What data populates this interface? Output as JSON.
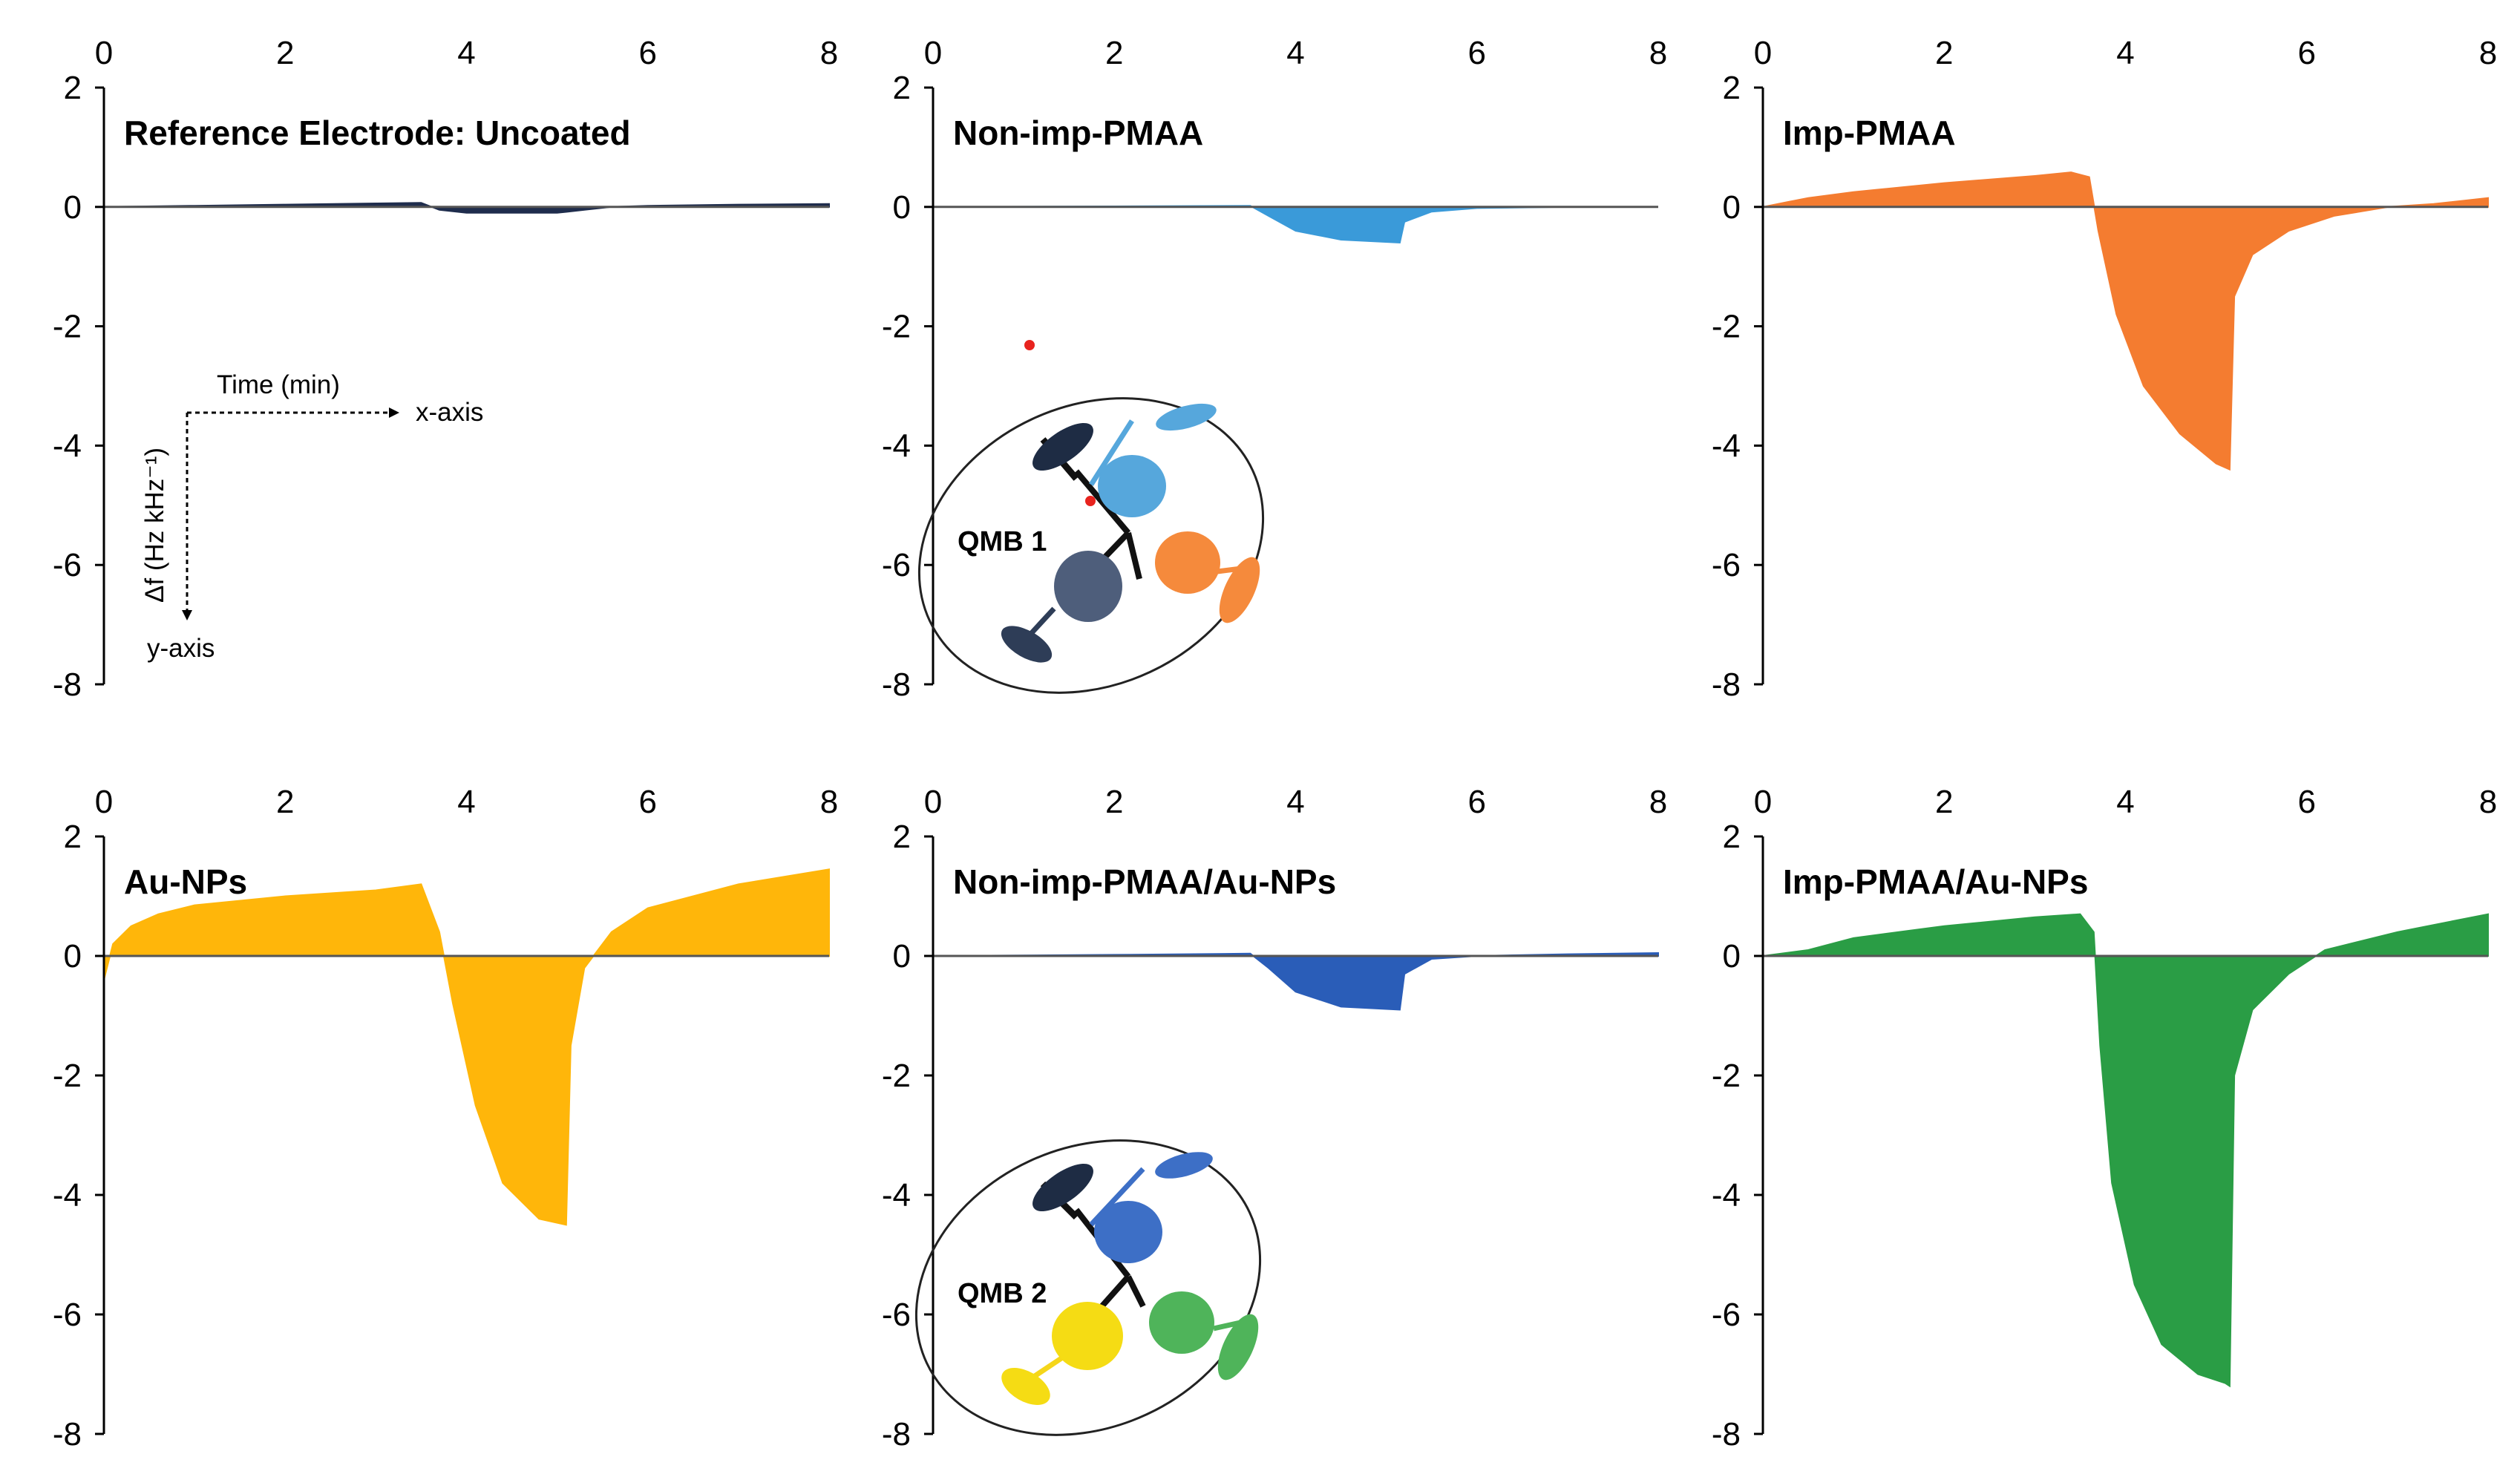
{
  "figure": {
    "x_tick_labels": [
      "0",
      "2",
      "4",
      "6",
      "8"
    ],
    "y_tick_labels": [
      "2",
      "0",
      "-2",
      "-4",
      "-6",
      "-8"
    ],
    "axis_key": {
      "x_label": "Time (min)",
      "x_axis_text": "x-axis",
      "y_label": "Δf (Hz kHz⁻¹)",
      "y_axis_text": "y-axis"
    },
    "sensor_labels": [
      "QMB 1",
      "QMB 2"
    ]
  },
  "chart_data": [
    {
      "type": "area",
      "title": "Reference Electrode: Uncoated",
      "color": "#1f2d4d",
      "xlabel": "Time (min)",
      "ylabel": "Δf (Hz kHz⁻¹)",
      "xlim": [
        0,
        8
      ],
      "ylim": [
        -8,
        2
      ],
      "x": [
        0,
        1,
        2,
        3,
        3.5,
        3.7,
        4,
        5,
        5.3,
        5.6,
        6,
        7,
        8
      ],
      "y": [
        0,
        0.02,
        0.04,
        0.06,
        0.07,
        -0.05,
        -0.1,
        -0.1,
        -0.05,
        0,
        0.02,
        0.04,
        0.05
      ]
    },
    {
      "type": "area",
      "title": "Non-imp-PMAA",
      "color": "#3a9ad9",
      "xlabel": "Time (min)",
      "ylabel": "Δf (Hz kHz⁻¹)",
      "xlim": [
        0,
        8
      ],
      "ylim": [
        -8,
        2
      ],
      "x": [
        0,
        2,
        3.5,
        3.7,
        4,
        4.5,
        5.15,
        5.2,
        5.5,
        6,
        7,
        8
      ],
      "y": [
        0,
        0.01,
        0.02,
        -0.15,
        -0.4,
        -0.55,
        -0.6,
        -0.25,
        -0.08,
        -0.02,
        0,
        0
      ]
    },
    {
      "type": "area",
      "title": "Imp-PMAA",
      "color": "#f47c30",
      "xlabel": "Time (min)",
      "ylabel": "Δf (Hz kHz⁻¹)",
      "xlim": [
        0,
        8
      ],
      "ylim": [
        -8,
        2
      ],
      "x": [
        0,
        0.5,
        1,
        2,
        3,
        3.4,
        3.6,
        3.7,
        3.9,
        4.2,
        4.6,
        5.0,
        5.15,
        5.2,
        5.4,
        5.8,
        6.3,
        6.9,
        7.4,
        8
      ],
      "y": [
        0,
        0.15,
        0.25,
        0.4,
        0.52,
        0.58,
        0.5,
        -0.4,
        -1.8,
        -3.0,
        -3.8,
        -4.3,
        -4.4,
        -1.5,
        -0.8,
        -0.4,
        -0.15,
        0,
        0.05,
        0.15
      ]
    },
    {
      "type": "area",
      "title": "Au-NPs",
      "color": "#ffb60a",
      "xlabel": "Time (min)",
      "ylabel": "Δf (Hz kHz⁻¹)",
      "xlim": [
        0,
        8
      ],
      "ylim": [
        -8,
        2
      ],
      "x": [
        0,
        0.1,
        0.3,
        0.6,
        1,
        2,
        3,
        3.5,
        3.7,
        3.85,
        4.1,
        4.4,
        4.8,
        5.1,
        5.15,
        5.3,
        5.6,
        6,
        7,
        8
      ],
      "y": [
        -0.4,
        0.2,
        0.5,
        0.7,
        0.85,
        1.0,
        1.1,
        1.2,
        0.4,
        -0.8,
        -2.5,
        -3.8,
        -4.4,
        -4.5,
        -1.5,
        -0.2,
        0.4,
        0.8,
        1.2,
        1.45
      ]
    },
    {
      "type": "area",
      "title": "Non-imp-PMAA/Au-NPs",
      "color": "#2a5db8",
      "xlabel": "Time (min)",
      "ylabel": "Δf (Hz kHz⁻¹)",
      "xlim": [
        0,
        8
      ],
      "ylim": [
        -8,
        2
      ],
      "x": [
        0,
        2,
        3.5,
        3.7,
        4,
        4.5,
        5.15,
        5.2,
        5.5,
        6,
        7,
        8
      ],
      "y": [
        0,
        0.02,
        0.04,
        -0.2,
        -0.6,
        -0.85,
        -0.9,
        -0.3,
        -0.05,
        0,
        0.03,
        0.05
      ]
    },
    {
      "type": "area",
      "title": "Imp-PMAA/Au-NPs",
      "color": "#2a9d45",
      "xlabel": "Time (min)",
      "ylabel": "Δf (Hz kHz⁻¹)",
      "xlim": [
        0,
        8
      ],
      "ylim": [
        -8,
        2
      ],
      "x": [
        0,
        0.5,
        1,
        2,
        3,
        3.5,
        3.65,
        3.72,
        3.85,
        4.1,
        4.4,
        4.8,
        5.1,
        5.15,
        5.2,
        5.4,
        5.8,
        6.2,
        7,
        8
      ],
      "y": [
        0,
        0.1,
        0.3,
        0.5,
        0.65,
        0.7,
        0.4,
        -1.5,
        -3.8,
        -5.5,
        -6.5,
        -7.0,
        -7.15,
        -7.2,
        -2.0,
        -0.9,
        -0.3,
        0.1,
        0.4,
        0.7
      ]
    }
  ]
}
